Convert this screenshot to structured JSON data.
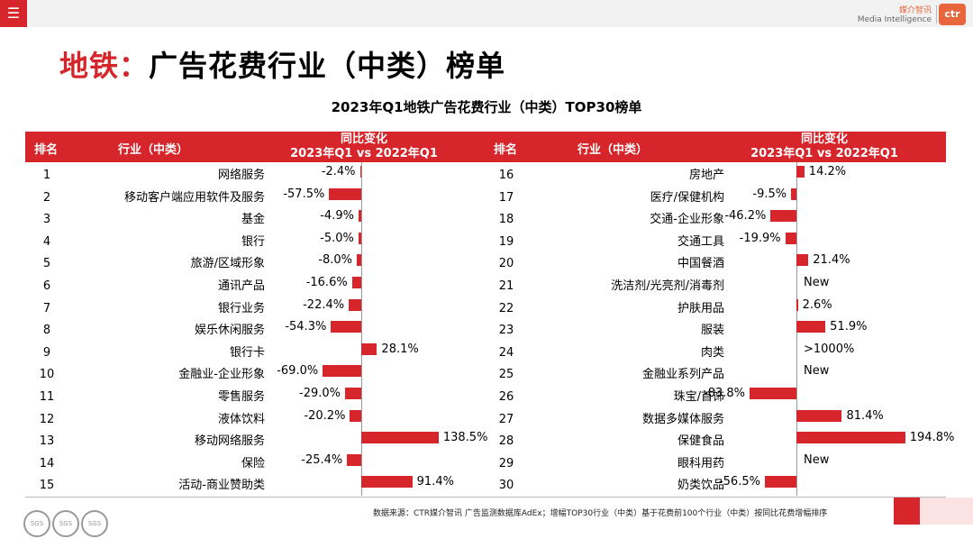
{
  "header": {
    "menu_icon": "hamburger-icon",
    "brand_cn": "媒介智讯",
    "brand_en": "Media Intelligence",
    "logo_text": "ctr"
  },
  "title": {
    "prefix": "地铁：",
    "main": "广告花费行业（中类）榜单"
  },
  "subtitle": "2023年Q1地铁广告花费行业（中类）TOP30榜单",
  "table_header": {
    "rank": "排名",
    "industry": "行业（中类）",
    "change_line1": "同比变化",
    "change_line2": "2023年Q1 vs 2022年Q1"
  },
  "left_rows": [
    {
      "rank": "1",
      "industry": "网络服务",
      "value": -2.4,
      "label": "-2.4%"
    },
    {
      "rank": "2",
      "industry": "移动客户端应用软件及服务",
      "value": -57.5,
      "label": "-57.5%"
    },
    {
      "rank": "3",
      "industry": "基金",
      "value": -4.9,
      "label": "-4.9%"
    },
    {
      "rank": "4",
      "industry": "银行",
      "value": -5.0,
      "label": "-5.0%"
    },
    {
      "rank": "5",
      "industry": "旅游/区域形象",
      "value": -8.0,
      "label": "-8.0%"
    },
    {
      "rank": "6",
      "industry": "通讯产品",
      "value": -16.6,
      "label": "-16.6%"
    },
    {
      "rank": "7",
      "industry": "银行业务",
      "value": -22.4,
      "label": "-22.4%"
    },
    {
      "rank": "8",
      "industry": "娱乐休闲服务",
      "value": -54.3,
      "label": "-54.3%"
    },
    {
      "rank": "9",
      "industry": "银行卡",
      "value": 28.1,
      "label": "28.1%"
    },
    {
      "rank": "10",
      "industry": "金融业-企业形象",
      "value": -69.0,
      "label": "-69.0%"
    },
    {
      "rank": "11",
      "industry": "零售服务",
      "value": -29.0,
      "label": "-29.0%"
    },
    {
      "rank": "12",
      "industry": "液体饮料",
      "value": -20.2,
      "label": "-20.2%"
    },
    {
      "rank": "13",
      "industry": "移动网络服务",
      "value": 138.5,
      "label": "138.5%"
    },
    {
      "rank": "14",
      "industry": "保险",
      "value": -25.4,
      "label": "-25.4%"
    },
    {
      "rank": "15",
      "industry": "活动-商业赞助类",
      "value": 91.4,
      "label": "91.4%"
    }
  ],
  "right_rows": [
    {
      "rank": "16",
      "industry": "房地产",
      "value": 14.2,
      "label": "14.2%"
    },
    {
      "rank": "17",
      "industry": "医疗/保健机构",
      "value": -9.5,
      "label": "-9.5%"
    },
    {
      "rank": "18",
      "industry": "交通-企业形象",
      "value": -46.2,
      "label": "-46.2%"
    },
    {
      "rank": "19",
      "industry": "交通工具",
      "value": -19.9,
      "label": "-19.9%"
    },
    {
      "rank": "20",
      "industry": "中国餐酒",
      "value": 21.4,
      "label": "21.4%"
    },
    {
      "rank": "21",
      "industry": "洗洁剂/光亮剂/消毒剂",
      "value": null,
      "label": "New"
    },
    {
      "rank": "22",
      "industry": "护肤用品",
      "value": 2.6,
      "label": "2.6%"
    },
    {
      "rank": "23",
      "industry": "服装",
      "value": 51.9,
      "label": "51.9%"
    },
    {
      "rank": "24",
      "industry": "肉类",
      "value": null,
      "label": ">1000%"
    },
    {
      "rank": "25",
      "industry": "金融业系列产品",
      "value": null,
      "label": "New"
    },
    {
      "rank": "26",
      "industry": "珠宝/首饰",
      "value": -83.8,
      "label": "-83.8%"
    },
    {
      "rank": "27",
      "industry": "数据多媒体服务",
      "value": 81.4,
      "label": "81.4%"
    },
    {
      "rank": "28",
      "industry": "保健食品",
      "value": 194.8,
      "label": "194.8%"
    },
    {
      "rank": "29",
      "industry": "眼科用药",
      "value": null,
      "label": "New"
    },
    {
      "rank": "30",
      "industry": "奶类饮品",
      "value": -56.5,
      "label": "-56.5%"
    }
  ],
  "footnote": "数据来源：CTR媒介智讯 广告监测数据库AdEx；增幅TOP30行业（中类）基于花费前100个行业（中类）按同比花费增幅排序",
  "badges": [
    "SGS",
    "SGS",
    "SGS"
  ],
  "colors": {
    "accent": "#d7262b",
    "brand_orange": "#e8663c"
  }
}
